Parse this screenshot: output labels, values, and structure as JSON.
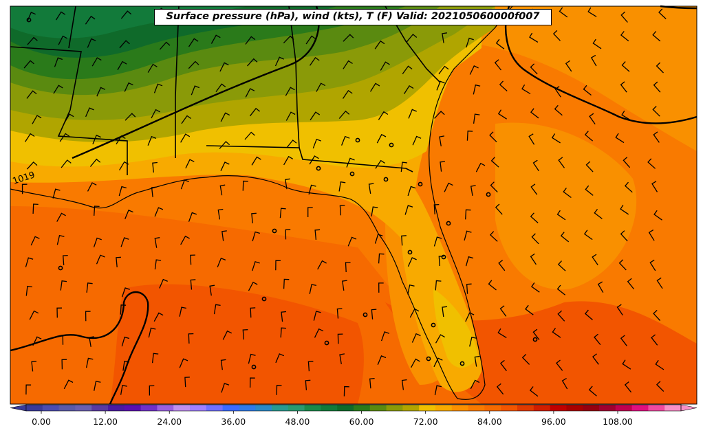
{
  "map": {
    "title": "Surface pressure (hPa), wind (kts), T (F) Valid: 202105060000f007",
    "isobar_label": "1019"
  },
  "colorbar": {
    "ticks": [
      "0.00",
      "12.00",
      "24.00",
      "36.00",
      "48.00",
      "60.00",
      "72.00",
      "84.00",
      "96.00",
      "108.00"
    ],
    "colors": [
      "#3a3a9a",
      "#4c4cb0",
      "#5a5aa8",
      "#6a5fb0",
      "#5a3aa0",
      "#4b1aa0",
      "#5a10b0",
      "#7030c8",
      "#9a60e0",
      "#c090f0",
      "#a080ff",
      "#7070ff",
      "#3a6aff",
      "#2f7ae8",
      "#2a8ac8",
      "#2a9a90",
      "#2a9a70",
      "#1a8a4a",
      "#127a3a",
      "#0f6a2a",
      "#2a7a1a",
      "#5a8a10",
      "#8a9a08",
      "#b0a500",
      "#f0c000",
      "#f8aa00",
      "#fb9000",
      "#f97a00",
      "#f66a00",
      "#f25500",
      "#e03a00",
      "#d01e00",
      "#c00000",
      "#a80000",
      "#950010",
      "#a00030",
      "#c00050",
      "#e01080",
      "#f04aa0",
      "#f890c8"
    ]
  }
}
